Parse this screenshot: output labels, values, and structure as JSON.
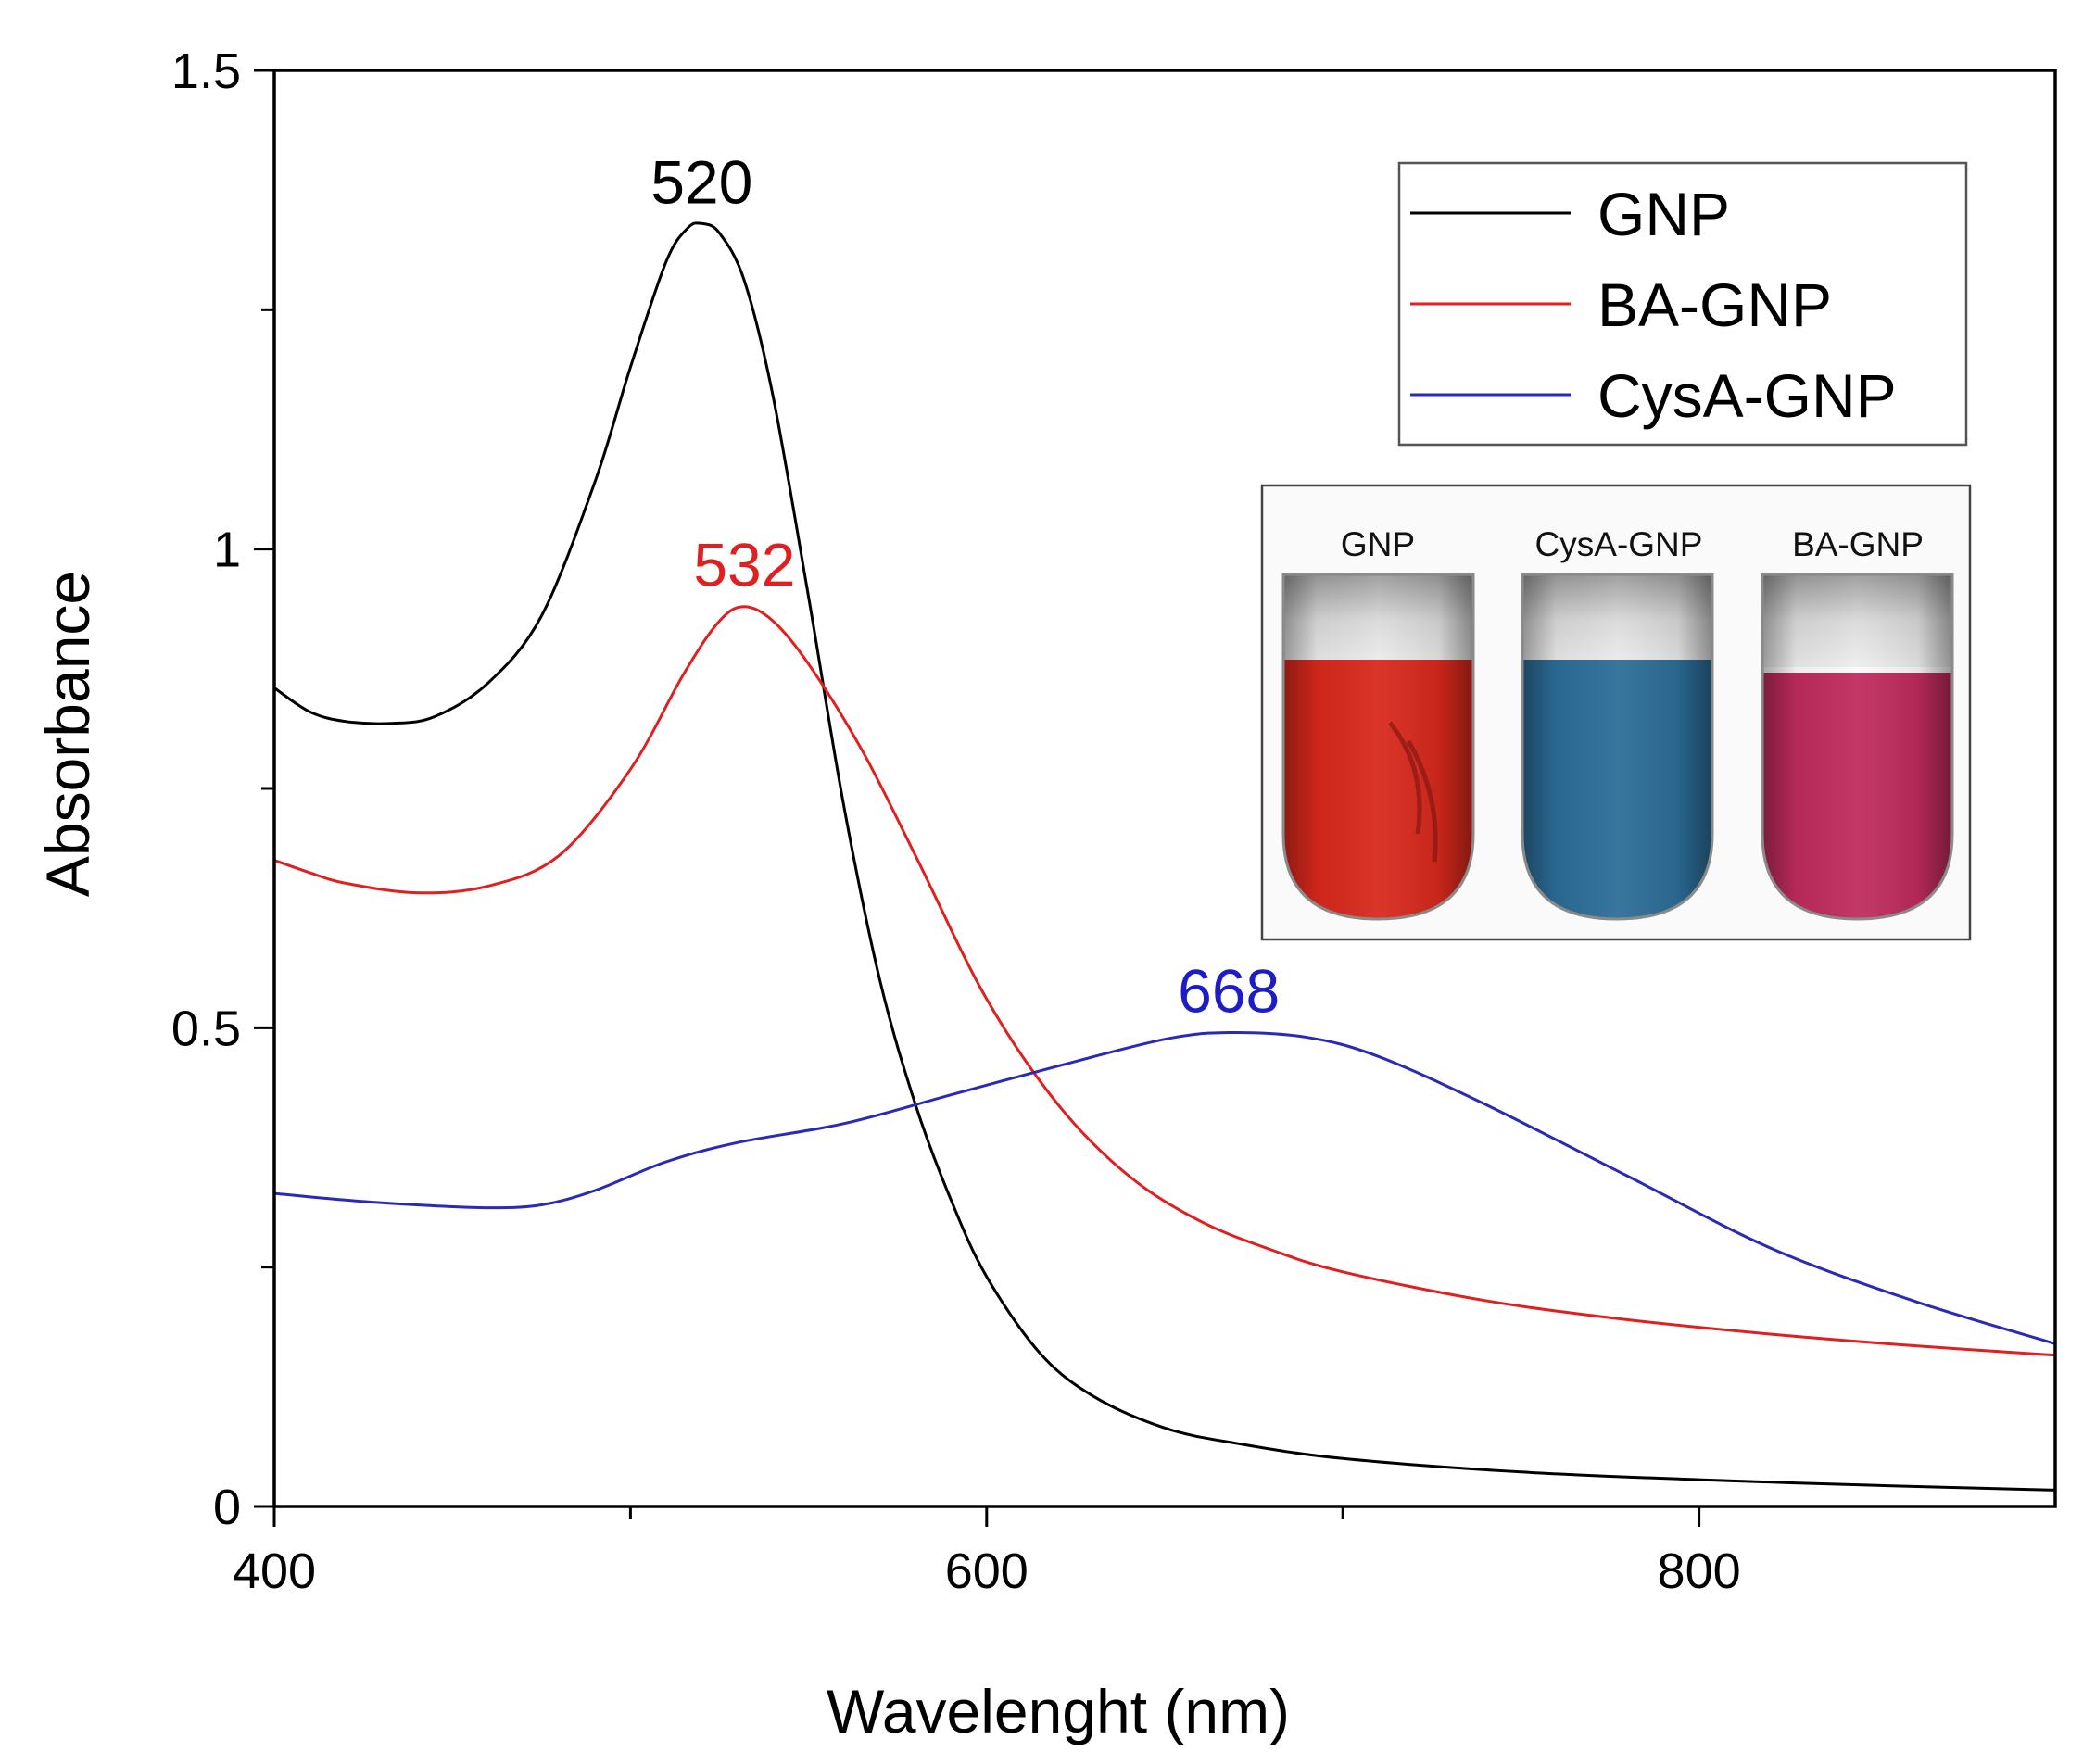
{
  "chart_data": {
    "type": "line",
    "title": "",
    "xlabel": "Wavelenght (nm)",
    "ylabel": "Absorbance",
    "xlim": [
      400,
      900
    ],
    "ylim": [
      0,
      1.5
    ],
    "x_ticks": [
      400,
      600,
      800
    ],
    "x_tick_labels": [
      "400",
      "600",
      "800"
    ],
    "x_minor_ticks": [
      500,
      700
    ],
    "y_ticks": [
      0,
      0.5,
      1,
      1.5
    ],
    "y_tick_labels": [
      "0",
      "0.5",
      "1",
      "1.5"
    ],
    "y_minor_ticks": [
      0.25,
      0.75,
      1.25
    ],
    "grid": false,
    "legend_position": "top-right",
    "series": [
      {
        "name": "GNP",
        "color": "#000000",
        "x": [
          400,
          410,
          420,
          433,
          445,
          460,
          475,
          490,
          500,
          510,
          516,
          520,
          525,
          532,
          540,
          550,
          560,
          570,
          580,
          590,
          600,
          615,
          630,
          650,
          670,
          700,
          750,
          800,
          850,
          900
        ],
        "y": [
          0.855,
          0.83,
          0.82,
          0.818,
          0.825,
          0.86,
          0.93,
          1.07,
          1.19,
          1.3,
          1.335,
          1.34,
          1.33,
          1.28,
          1.16,
          0.95,
          0.73,
          0.55,
          0.42,
          0.32,
          0.24,
          0.16,
          0.115,
          0.082,
          0.066,
          0.05,
          0.036,
          0.028,
          0.022,
          0.017
        ]
      },
      {
        "name": "BA-GNP",
        "color": "#e02020",
        "x": [
          400,
          410,
          420,
          440,
          460,
          480,
          500,
          515,
          525,
          532,
          540,
          550,
          565,
          580,
          600,
          620,
          640,
          660,
          680,
          700,
          740,
          780,
          820,
          860,
          900
        ],
        "y": [
          0.675,
          0.662,
          0.651,
          0.641,
          0.648,
          0.68,
          0.77,
          0.87,
          0.925,
          0.94,
          0.925,
          0.88,
          0.79,
          0.68,
          0.53,
          0.42,
          0.345,
          0.298,
          0.268,
          0.245,
          0.215,
          0.195,
          0.18,
          0.168,
          0.158
        ]
      },
      {
        "name": "CysA-GNP",
        "color": "#2a2ab8",
        "x": [
          400,
          420,
          440,
          460,
          475,
          490,
          510,
          530,
          560,
          590,
          620,
          650,
          668,
          690,
          710,
          740,
          780,
          820,
          860,
          900
        ],
        "y": [
          0.327,
          0.32,
          0.315,
          0.312,
          0.315,
          0.33,
          0.36,
          0.38,
          0.4,
          0.43,
          0.46,
          0.488,
          0.495,
          0.49,
          0.47,
          0.42,
          0.345,
          0.27,
          0.215,
          0.17
        ]
      }
    ],
    "annotations": [
      {
        "text": "520",
        "x": 520,
        "y": 1.34,
        "color": "#000000"
      },
      {
        "text": "532",
        "x": 532,
        "y": 0.94,
        "color": "#e02020"
      },
      {
        "text": "668",
        "x": 668,
        "y": 0.495,
        "color": "#1c1cc8"
      }
    ],
    "inset": {
      "description_labels": [
        "GNP",
        "CysA-GNP",
        "BA-GNP"
      ],
      "tube_colors": [
        "#d8281c",
        "#2c6d98",
        "#bf2b5d"
      ]
    }
  }
}
